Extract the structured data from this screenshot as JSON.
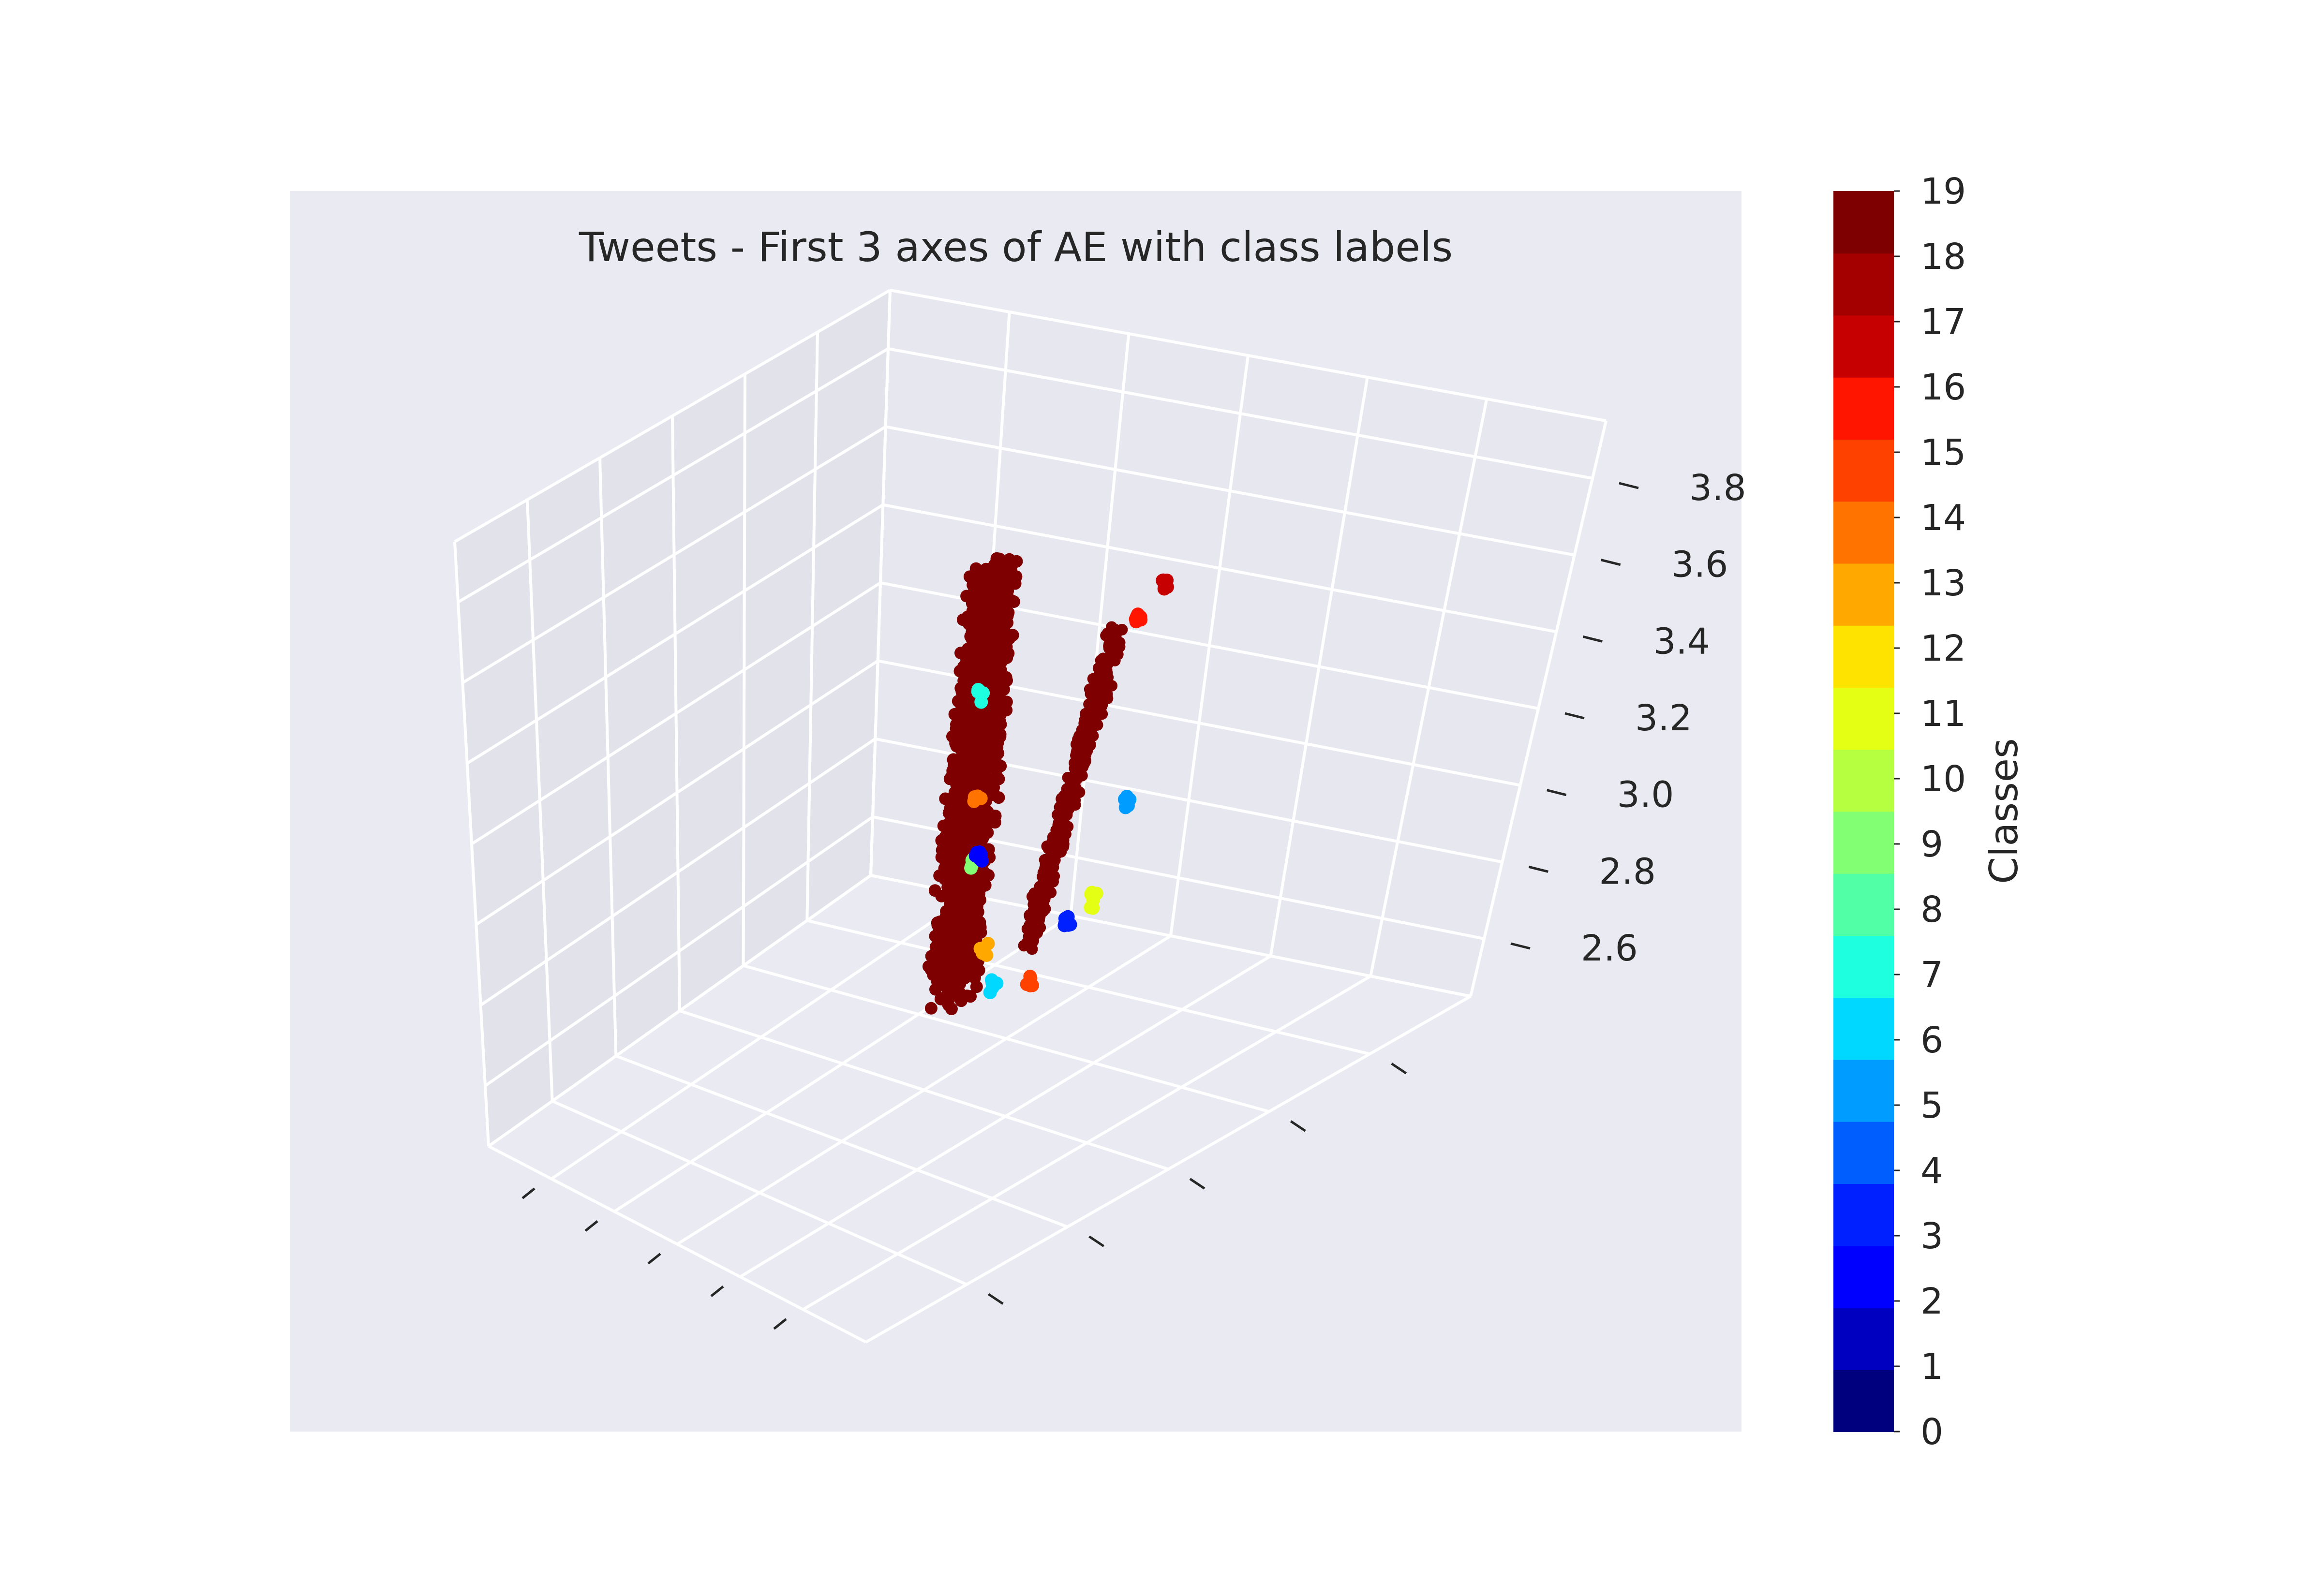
{
  "chart_data": {
    "type": "scatter",
    "projection": "3d",
    "title": "Tweets - First 3 axes of AE with class labels",
    "xlabel": "",
    "ylabel": "",
    "zlabel": "",
    "z_ticks": [
      "2.6",
      "2.8",
      "3.0",
      "3.2",
      "3.4",
      "3.6",
      "3.8"
    ],
    "z_range": [
      2.45,
      3.95
    ],
    "grid": true,
    "colorbar": {
      "label": "Classes",
      "ticks": [
        "0",
        "1",
        "2",
        "3",
        "4",
        "5",
        "6",
        "7",
        "8",
        "9",
        "10",
        "11",
        "12",
        "13",
        "14",
        "15",
        "16",
        "17",
        "18",
        "19"
      ],
      "colormap": [
        "#00007f",
        "#0000c1",
        "#0000ff",
        "#0020ff",
        "#005eff",
        "#009cff",
        "#00d8ff",
        "#1effe0",
        "#50ffa6",
        "#83ff73",
        "#b6ff40",
        "#e4ff13",
        "#ffe300",
        "#ffa800",
        "#ff7400",
        "#ff4100",
        "#ff1500",
        "#c60000",
        "#a40000",
        "#7f0000"
      ]
    },
    "dominant_class": 19,
    "series": [
      {
        "class": 19,
        "description_points": [
          [
            0.35,
            0.55,
            2.55
          ],
          [
            0.5,
            0.5,
            3.1
          ],
          [
            0.62,
            0.45,
            3.8
          ],
          [
            0.7,
            0.6,
            3.55
          ]
        ]
      },
      {
        "class": 17,
        "description_points": [
          [
            0.8,
            0.62,
            3.7
          ]
        ]
      },
      {
        "class": 16,
        "description_points": [
          [
            0.76,
            0.6,
            3.62
          ]
        ]
      },
      {
        "class": 7,
        "description_points": [
          [
            0.57,
            0.46,
            3.45
          ]
        ]
      },
      {
        "class": 5,
        "description_points": [
          [
            0.7,
            0.62,
            3.12
          ]
        ]
      },
      {
        "class": 14,
        "description_points": [
          [
            0.54,
            0.47,
            3.18
          ]
        ]
      },
      {
        "class": 9,
        "description_points": [
          [
            0.5,
            0.49,
            2.98
          ]
        ]
      },
      {
        "class": 11,
        "description_points": [
          [
            0.64,
            0.6,
            2.86
          ]
        ]
      },
      {
        "class": 3,
        "description_points": [
          [
            0.6,
            0.58,
            2.8
          ]
        ]
      },
      {
        "class": 13,
        "description_points": [
          [
            0.48,
            0.52,
            2.72
          ]
        ]
      },
      {
        "class": 6,
        "description_points": [
          [
            0.46,
            0.55,
            2.6
          ]
        ]
      },
      {
        "class": 15,
        "description_points": [
          [
            0.52,
            0.57,
            2.62
          ]
        ]
      },
      {
        "class": 2,
        "description_points": [
          [
            0.53,
            0.48,
            3.02
          ]
        ]
      }
    ]
  }
}
